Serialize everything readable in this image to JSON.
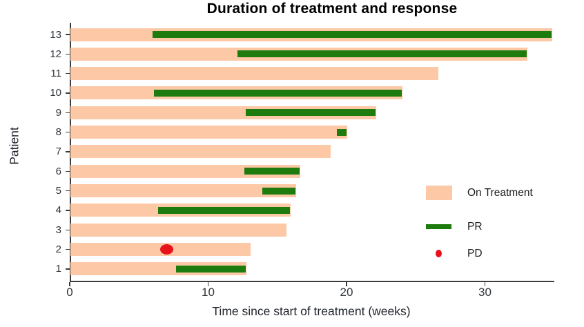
{
  "chart_data": {
    "type": "bar",
    "subtype": "swimmer-plot",
    "title": "Duration of treatment and response",
    "xlabel": "Time since start of treatment (weeks)",
    "ylabel": "Patient",
    "xlim": [
      0,
      35
    ],
    "x_ticks": [
      0,
      10,
      20,
      30
    ],
    "grid": "off",
    "legend_position": "right-middle",
    "patients": [
      {
        "id": 13,
        "on_treatment": 34.8,
        "pr": [
          6.0,
          34.8
        ]
      },
      {
        "id": 12,
        "on_treatment": 33.0,
        "pr": [
          12.1,
          33.0
        ]
      },
      {
        "id": 11,
        "on_treatment": 26.6
      },
      {
        "id": 10,
        "on_treatment": 24.0,
        "pr": [
          6.1,
          24.0
        ]
      },
      {
        "id": 9,
        "on_treatment": 22.1,
        "pr": [
          12.7,
          22.1
        ]
      },
      {
        "id": 8,
        "on_treatment": 20.0,
        "pr": [
          19.3,
          20.0
        ]
      },
      {
        "id": 7,
        "on_treatment": 18.8
      },
      {
        "id": 6,
        "on_treatment": 16.6,
        "pr": [
          12.6,
          16.6
        ]
      },
      {
        "id": 5,
        "on_treatment": 16.3,
        "pr": [
          13.9,
          16.3
        ]
      },
      {
        "id": 4,
        "on_treatment": 15.9,
        "pr": [
          6.4,
          15.9
        ]
      },
      {
        "id": 3,
        "on_treatment": 15.6
      },
      {
        "id": 2,
        "on_treatment": 13.0,
        "pd": 7.0
      },
      {
        "id": 1,
        "on_treatment": 12.7,
        "pr": [
          7.7,
          12.7
        ]
      }
    ],
    "legend": [
      {
        "label": "On Treatment",
        "marker": "rect"
      },
      {
        "label": "PR",
        "marker": "thick-line"
      },
      {
        "label": "PD",
        "marker": "dot"
      }
    ],
    "colors": {
      "on_treatment": "#FCC8A5",
      "pr": "#1E7B0D",
      "pd": "#E8121B",
      "axis": "#3C3C3C",
      "tick_text": "#31363C"
    }
  }
}
